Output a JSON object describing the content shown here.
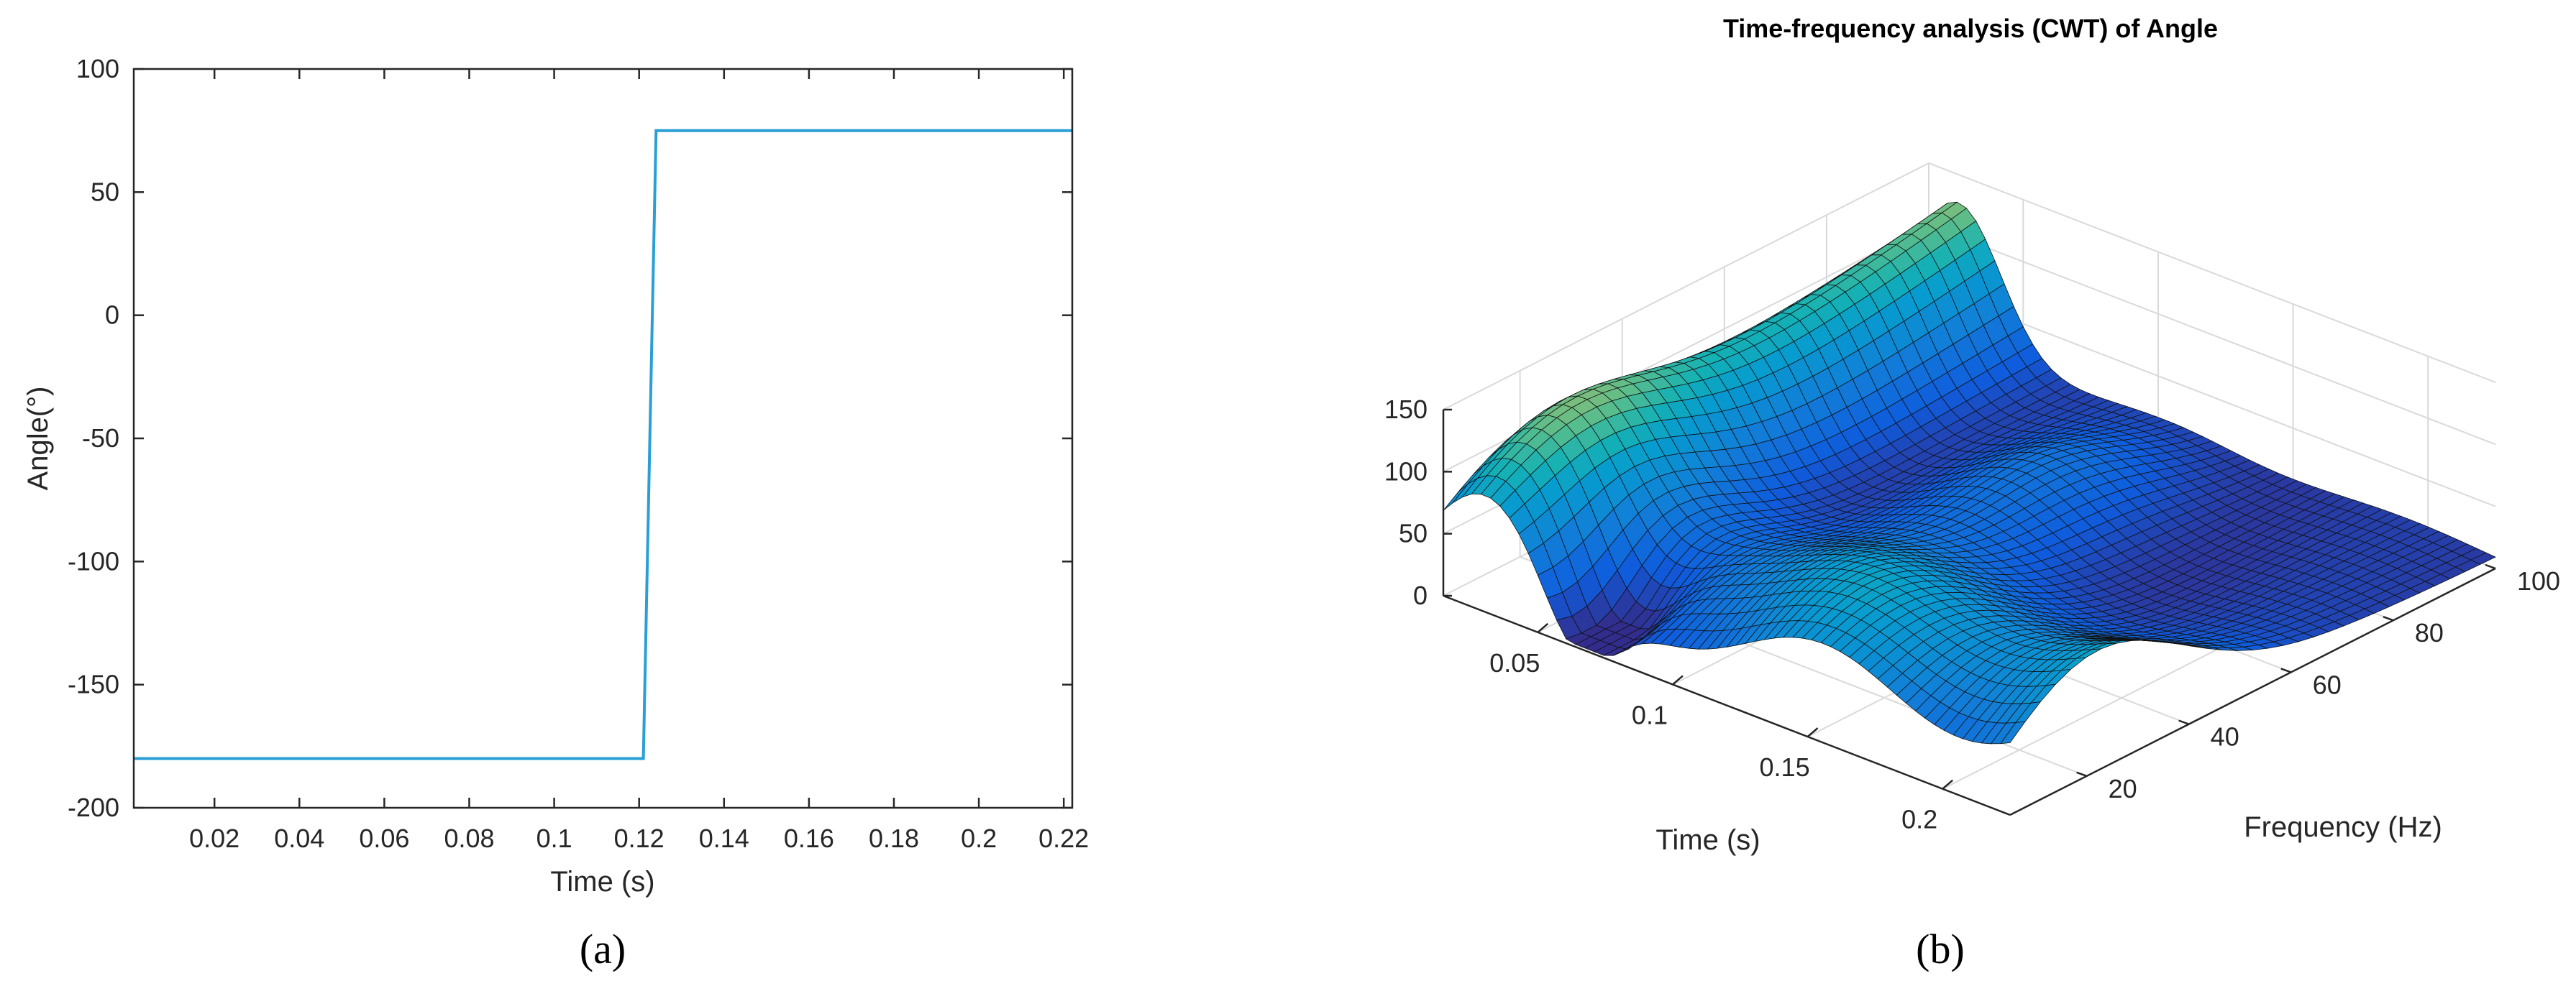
{
  "chart_data": [
    {
      "type": "line",
      "title": "",
      "xlabel": "Time (s)",
      "ylabel": "Angle(°)",
      "xlim": [
        0.001,
        0.222
      ],
      "ylim": [
        -200,
        100
      ],
      "xticks": [
        0.02,
        0.04,
        0.06,
        0.08,
        0.1,
        0.12,
        0.14,
        0.16,
        0.18,
        0.2,
        0.22
      ],
      "xtick_labels": [
        "0.02",
        "0.04",
        "0.06",
        "0.08",
        "0.1",
        "0.12",
        "0.14",
        "0.16",
        "0.18",
        "0.2",
        "0.22"
      ],
      "yticks": [
        100,
        50,
        0,
        -50,
        -100,
        -150,
        -200
      ],
      "ytick_labels": [
        "100",
        "50",
        "0",
        "-50",
        "-100",
        "-150",
        "-200"
      ],
      "series": [
        {
          "color": "#2a9fd6",
          "x": [
            0.001,
            0.121,
            0.124,
            0.222
          ],
          "y": [
            -180,
            -180,
            75,
            75
          ]
        }
      ],
      "grid": false,
      "box": true,
      "caption": "(a)"
    },
    {
      "type": "surface",
      "title": "Time-frequency analysis (CWT) of Angle",
      "xlabel": "Time (s)",
      "ylabel": "Frequency (Hz)",
      "zlabel": "",
      "xlim": [
        0.015,
        0.225
      ],
      "ylim": [
        5,
        100
      ],
      "zlim": [
        0,
        150
      ],
      "xticks": [
        0.05,
        0.1,
        0.15,
        0.2
      ],
      "xtick_labels": [
        "0.05",
        "0.1",
        "0.15",
        "0.2"
      ],
      "yticks": [
        20,
        40,
        60,
        80,
        100
      ],
      "ytick_labels": [
        "20",
        "40",
        "60",
        "80",
        "100"
      ],
      "zticks": [
        0,
        50,
        100,
        150
      ],
      "ztick_labels": [
        "0",
        "50",
        "100",
        "150"
      ],
      "colormap": "parula",
      "grid": true,
      "caption": "(b)"
    }
  ]
}
